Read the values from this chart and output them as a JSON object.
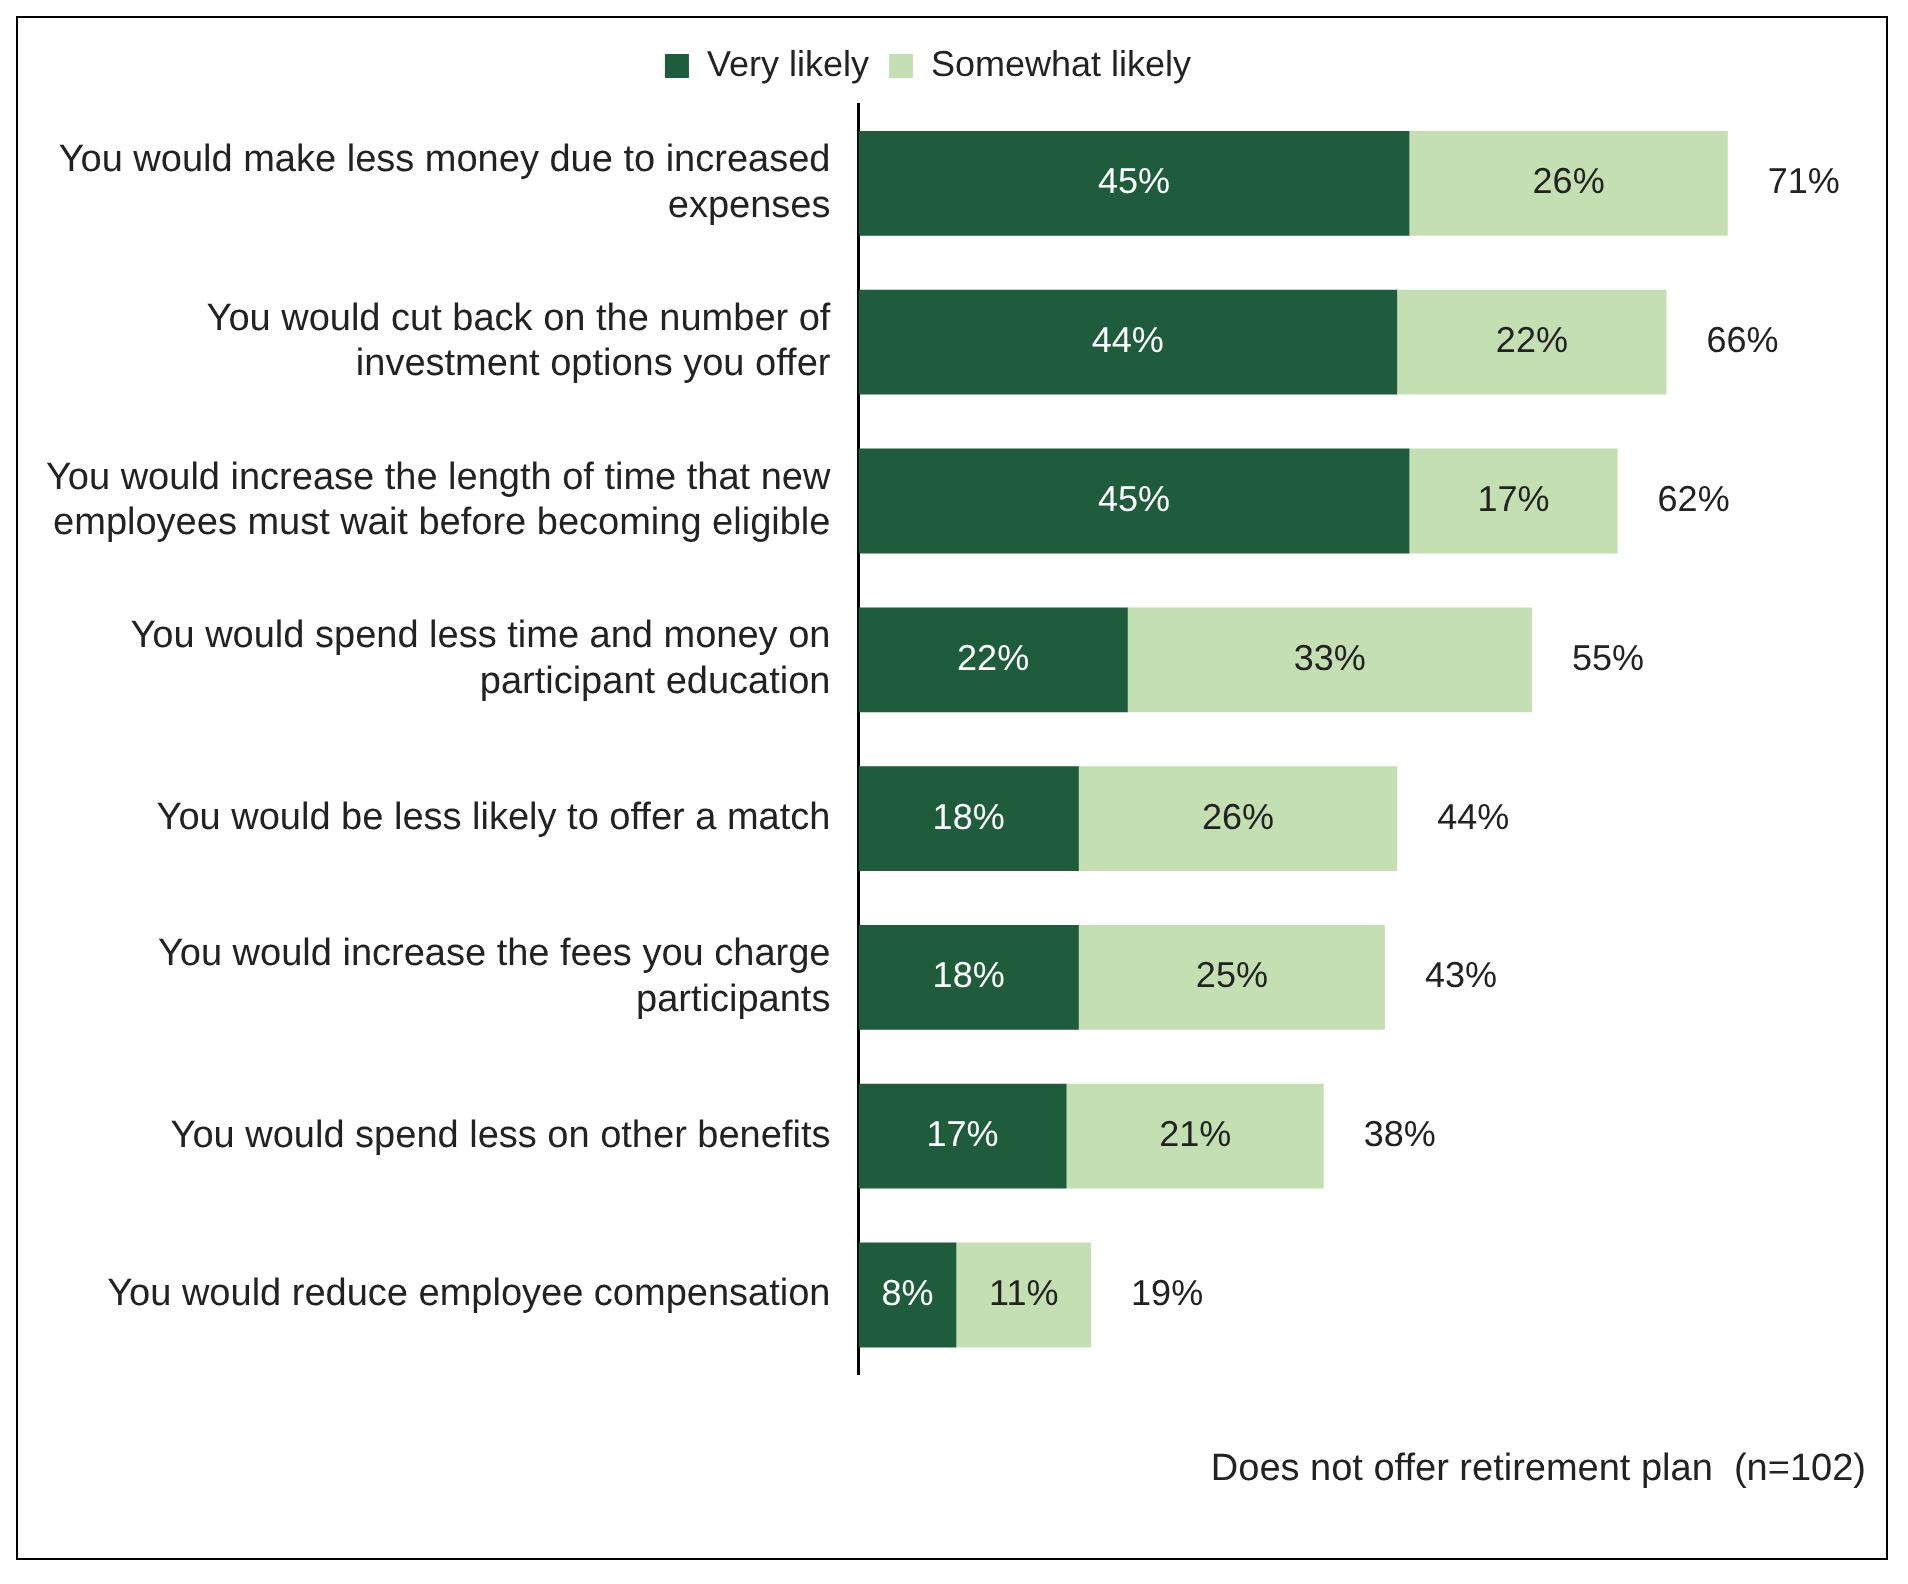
{
  "chart_data": {
    "type": "bar",
    "orientation": "horizontal",
    "stacked": true,
    "categories": [
      "You would make less money due to increased expenses",
      "You would cut back on the number of investment options you offer",
      "You would increase the length of time that new employees must wait before becoming eligible",
      "You would spend less time and money on participant education",
      "You would be less likely to offer a match",
      "You would increase the fees you charge participants",
      "You would spend less on other benefits",
      "You would reduce employee compensation"
    ],
    "series": [
      {
        "name": "Very likely",
        "color": "#1f5c3b",
        "values": [
          45,
          44,
          45,
          22,
          18,
          18,
          17,
          8
        ],
        "value_labels": [
          "45%",
          "44%",
          "45%",
          "22%",
          "18%",
          "18%",
          "17%",
          "8%"
        ]
      },
      {
        "name": "Somewhat likely",
        "color": "#c4e0b2",
        "values": [
          26,
          22,
          17,
          33,
          26,
          25,
          21,
          11
        ],
        "value_labels": [
          "26%",
          "22%",
          "17%",
          "33%",
          "26%",
          "25%",
          "21%",
          "11%"
        ]
      }
    ],
    "totals": [
      "71%",
      "66%",
      "62%",
      "55%",
      "44%",
      "43%",
      "38%",
      "19%"
    ],
    "legend": "top",
    "annotations": [
      "Does not offer retirement plan  (n=102)"
    ]
  }
}
